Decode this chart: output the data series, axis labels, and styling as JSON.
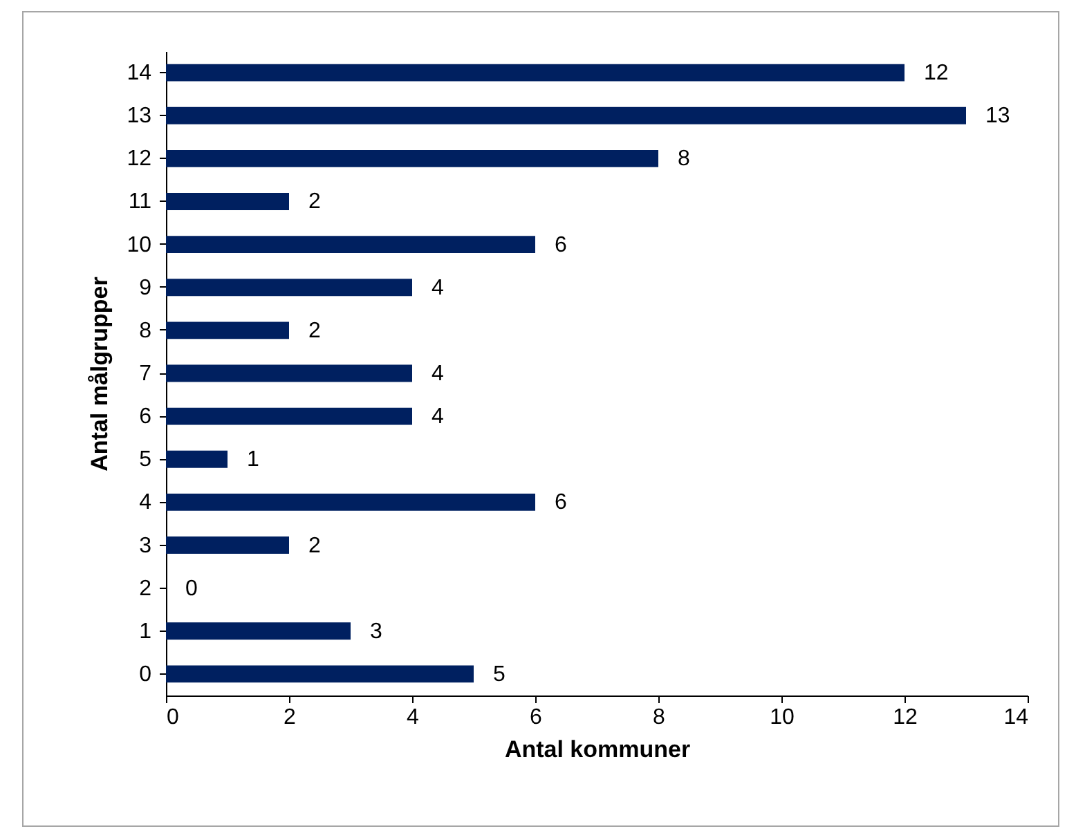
{
  "chart_data": {
    "type": "bar",
    "orientation": "horizontal",
    "xlabel": "Antal kommuner",
    "ylabel": "Antal målgrupper",
    "categories": [
      "14",
      "13",
      "12",
      "11",
      "10",
      "9",
      "8",
      "7",
      "6",
      "5",
      "4",
      "3",
      "2",
      "1",
      "0"
    ],
    "values": [
      12,
      13,
      8,
      2,
      6,
      4,
      2,
      4,
      4,
      1,
      6,
      2,
      0,
      3,
      5
    ],
    "color": "#002060",
    "xlim": [
      0,
      14
    ],
    "xticks": [
      0,
      2,
      4,
      6,
      8,
      10,
      12,
      14
    ],
    "grid": false,
    "data_labels": true
  }
}
